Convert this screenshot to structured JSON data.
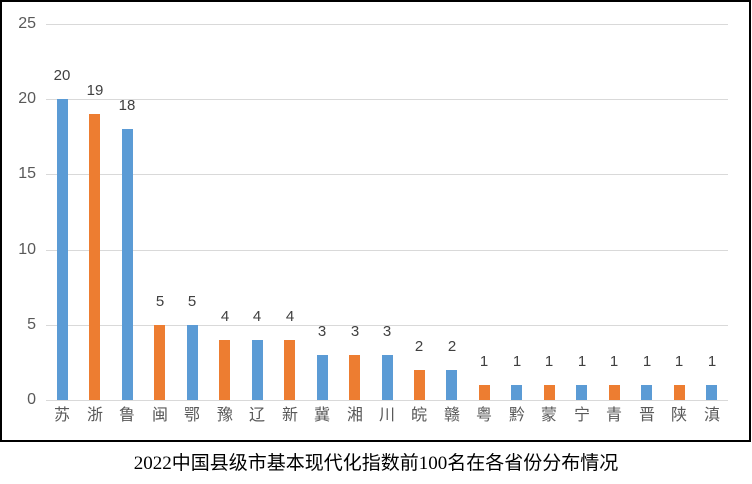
{
  "title": "2022中国县级市基本现代化指数前100名在各省份分布情况",
  "colors": {
    "bar_blue": "#5B9BD5",
    "bar_orange": "#ED7D31",
    "gridline": "#D9D9D9",
    "axis_text": "#595959",
    "data_label_text": "#404040",
    "frame_border": "#000000",
    "background": "#FFFFFF"
  },
  "chart_data": {
    "type": "bar",
    "title": "2022中国县级市基本现代化指数前100名在各省份分布情况",
    "categories": [
      "苏",
      "浙",
      "鲁",
      "闽",
      "鄂",
      "豫",
      "辽",
      "新",
      "冀",
      "湘",
      "川",
      "皖",
      "赣",
      "粤",
      "黔",
      "蒙",
      "宁",
      "青",
      "晋",
      "陕",
      "滇"
    ],
    "values": [
      20,
      19,
      18,
      5,
      5,
      4,
      4,
      4,
      3,
      3,
      3,
      2,
      2,
      1,
      1,
      1,
      1,
      1,
      1,
      1,
      1
    ],
    "bar_colors": [
      "#5B9BD5",
      "#ED7D31",
      "#5B9BD5",
      "#ED7D31",
      "#5B9BD5",
      "#ED7D31",
      "#5B9BD5",
      "#ED7D31",
      "#5B9BD5",
      "#ED7D31",
      "#5B9BD5",
      "#ED7D31",
      "#5B9BD5",
      "#ED7D31",
      "#5B9BD5",
      "#ED7D31",
      "#5B9BD5",
      "#ED7D31",
      "#5B9BD5",
      "#ED7D31",
      "#5B9BD5"
    ],
    "data_labels": [
      "20",
      "19",
      "18",
      "5",
      "5",
      "4",
      "4",
      "4",
      "3",
      "3",
      "3",
      "2",
      "2",
      "1",
      "1",
      "1",
      "1",
      "1",
      "1",
      "1",
      "1"
    ],
    "xlabel": "",
    "ylabel": "",
    "ylim": [
      0,
      25
    ],
    "yticks": [
      0,
      5,
      10,
      15,
      20,
      25
    ],
    "ytick_labels": [
      "0",
      "5",
      "10",
      "15",
      "20",
      "25"
    ],
    "grid": "horizontal",
    "legend": "none",
    "title_position": "below-chart"
  }
}
